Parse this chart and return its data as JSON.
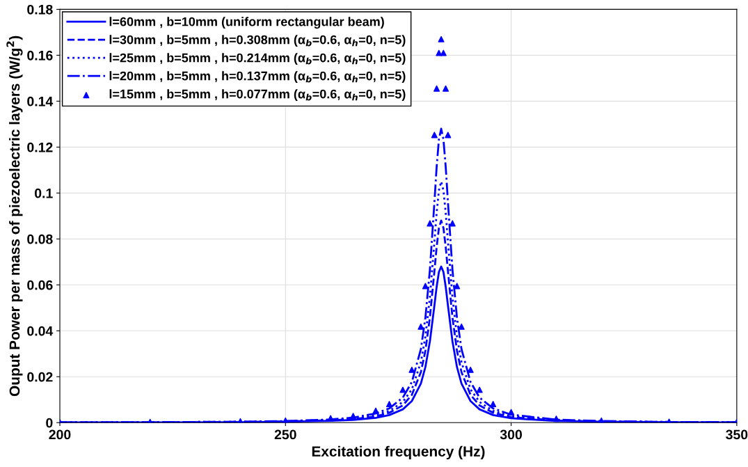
{
  "chart_data": {
    "type": "line",
    "xlabel": "Excitation frequency (Hz)",
    "ylabel": "Ouput Power per mass of piezoelectric layers (W/g$^{2}$)",
    "x": [
      200,
      220,
      240,
      250,
      260,
      265,
      270,
      273,
      276,
      278,
      280,
      281,
      282,
      283,
      283.5,
      284,
      284.5,
      285,
      285.5,
      286,
      287,
      288,
      289,
      291,
      293,
      296,
      300,
      310,
      320,
      335,
      350
    ],
    "xlim": [
      200,
      350
    ],
    "xticks": [
      200,
      250,
      300,
      350
    ],
    "ylim": [
      0,
      0.18
    ],
    "yticks": [
      0,
      0.02,
      0.04,
      0.06,
      0.08,
      0.1,
      0.12,
      0.14,
      0.16,
      0.18
    ],
    "grid": true,
    "legend": "top left",
    "series": [
      {
        "name": "l=60mm , b=10mm (uniform rectangular beam)",
        "color": "#0000ff",
        "line_style": "solid",
        "marker": "none",
        "values": [
          0.0001,
          0.0001,
          0.0002,
          0.0004,
          0.0008,
          0.0012,
          0.0021,
          0.0033,
          0.0058,
          0.0094,
          0.017,
          0.0242,
          0.0354,
          0.051,
          0.0592,
          0.0656,
          0.068,
          0.0656,
          0.0592,
          0.051,
          0.0354,
          0.0242,
          0.017,
          0.0094,
          0.0058,
          0.0033,
          0.0019,
          0.0007,
          0.0004,
          0.0002,
          0.0001
        ]
      },
      {
        "name": "l=30mm , b=5mm , h=0.308mm (α$_{b}$=0.6, α$_{h}$=0, n=5)",
        "color": "#0000ff",
        "line_style": "dashed",
        "marker": "none",
        "values": [
          0.0001,
          0.0001,
          0.0003,
          0.0005,
          0.001,
          0.0015,
          0.0027,
          0.0043,
          0.0075,
          0.0121,
          0.022,
          0.0313,
          0.0458,
          0.066,
          0.0766,
          0.0848,
          0.088,
          0.0848,
          0.0766,
          0.066,
          0.0458,
          0.0313,
          0.022,
          0.0121,
          0.0075,
          0.0043,
          0.0024,
          0.0009,
          0.0005,
          0.0002,
          0.0001
        ]
      },
      {
        "name": "l=25mm , b=5mm , h=0.214mm (α$_{b}$=0.6, α$_{h}$=0, n=5)",
        "color": "#0000ff",
        "line_style": "dotted",
        "marker": "none",
        "values": [
          0.0001,
          0.0002,
          0.0004,
          0.0006,
          0.0012,
          0.0018,
          0.0033,
          0.0051,
          0.009,
          0.0145,
          0.0263,
          0.0374,
          0.0546,
          0.0788,
          0.0915,
          0.1012,
          0.105,
          0.1012,
          0.0915,
          0.0788,
          0.0546,
          0.0374,
          0.0263,
          0.0145,
          0.009,
          0.0051,
          0.0029,
          0.0011,
          0.0006,
          0.0003,
          0.0002
        ]
      },
      {
        "name": "l=20mm , b=5mm , h=0.137mm (α$_{b}$=0.6, α$_{h}$=0, n=5)",
        "color": "#0000ff",
        "line_style": "dashdot",
        "marker": "none",
        "values": [
          0.0001,
          0.0002,
          0.0004,
          0.0007,
          0.0014,
          0.0022,
          0.004,
          0.0062,
          0.0109,
          0.0177,
          0.032,
          0.0456,
          0.0666,
          0.096,
          0.1115,
          0.1234,
          0.128,
          0.1234,
          0.1115,
          0.096,
          0.0666,
          0.0456,
          0.032,
          0.0177,
          0.0109,
          0.0062,
          0.0035,
          0.0013,
          0.0007,
          0.0003,
          0.0002
        ]
      },
      {
        "name": "l=15mm , b=5mm , h=0.077mm (α$_{b}$=0.6, α$_{h}$=0, n=5)",
        "color": "#0000ff",
        "type": "scatter",
        "marker": "triangle",
        "values": [
          0.0002,
          0.0003,
          0.0006,
          0.0009,
          0.0019,
          0.0029,
          0.0052,
          0.0081,
          0.0143,
          0.023,
          0.0418,
          0.0595,
          0.0868,
          0.1253,
          0.1455,
          0.161,
          0.167,
          0.161,
          0.1455,
          0.1253,
          0.0868,
          0.0595,
          0.0418,
          0.023,
          0.0143,
          0.0081,
          0.0046,
          0.0017,
          0.0009,
          0.0004,
          0.0003
        ]
      }
    ]
  }
}
